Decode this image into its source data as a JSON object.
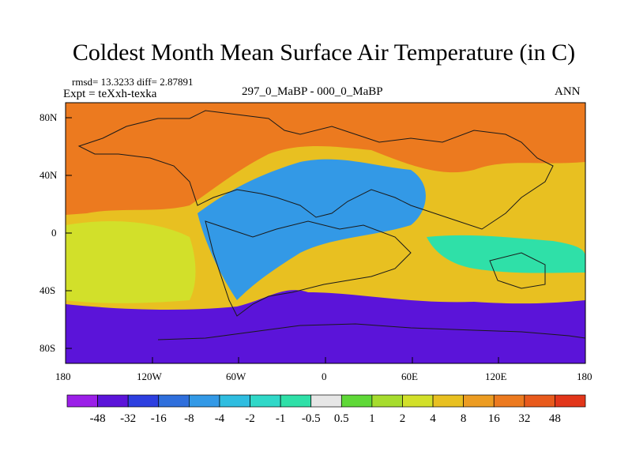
{
  "chart_data": {
    "type": "heatmap",
    "title": "Coldest Month Mean Surface Air Temperature (in C)",
    "stats": "rmsd= 13.3233 diff= 2.87891",
    "experiment": "Expt = teXxh-texka",
    "comparison": "297_0_MaBP - 000_0_MaBP",
    "season": "ANN",
    "x_ticks": [
      "180",
      "120W",
      "60W",
      "0",
      "60E",
      "120E",
      "180"
    ],
    "y_ticks": [
      "80N",
      "40N",
      "0",
      "40S",
      "80S"
    ],
    "x_range": [
      -180,
      180
    ],
    "y_range": [
      -90,
      90
    ],
    "colorbar": {
      "labels": [
        "-48",
        "-32",
        "-16",
        "-8",
        "-4",
        "-2",
        "-1",
        "-0.5",
        "0.5",
        "1",
        "2",
        "4",
        "8",
        "16",
        "32",
        "48"
      ],
      "colors": [
        "#9b1fe8",
        "#5b14d9",
        "#2d3fe0",
        "#2f6fdc",
        "#3399e6",
        "#2fbde0",
        "#30d8c8",
        "#2fe0a8",
        "#e6e6e6",
        "#5fd838",
        "#a6dc2e",
        "#d2e02a",
        "#e8c021",
        "#ec9c22",
        "#ec7a1f",
        "#e85a1c",
        "#e2361a"
      ]
    },
    "regions": [
      {
        "name": "global-background",
        "value": 6
      },
      {
        "name": "north-pacific-arctic",
        "value": 24
      },
      {
        "name": "southern-ocean-band",
        "value": -40
      },
      {
        "name": "panthalassa-tropical",
        "value": 3
      },
      {
        "name": "tethys-cooling",
        "value": -6
      },
      {
        "name": "equatorial-east-cooling",
        "value": -1
      }
    ],
    "colors": {
      "land_outline": "#1a1a1a",
      "frame": "#000000"
    }
  }
}
